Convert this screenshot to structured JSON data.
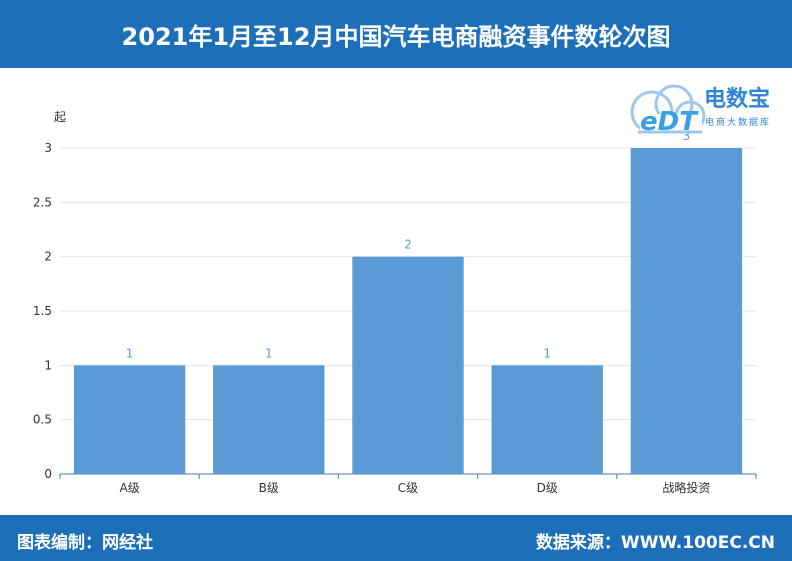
{
  "header": {
    "title": "2021年1月至12月中国汽车电商融资事件数轮次图"
  },
  "footer": {
    "editor": "图表编制：网经社",
    "source": "数据来源：WWW.100EC.CN"
  },
  "logo": {
    "mark": "eDT",
    "name": "电数宝",
    "tagline": "电商大数据库"
  },
  "colors": {
    "brand": "#1e6fba",
    "bar": "#5b9bd5",
    "label": "#5b9bd5",
    "axis": "#333333",
    "grid": "#e6e6e6"
  },
  "chart_data": {
    "type": "bar",
    "categories": [
      "A级",
      "B级",
      "C级",
      "D级",
      "战略投资"
    ],
    "values": [
      1,
      1,
      2,
      1,
      3
    ],
    "ylabel": "起",
    "ylim": [
      0,
      3
    ],
    "yticks": [
      "0",
      "0.5",
      "1",
      "1.5",
      "2",
      "2.5",
      "3"
    ],
    "data_labels": [
      "1",
      "1",
      "2",
      "1",
      "3"
    ],
    "grid": true
  }
}
